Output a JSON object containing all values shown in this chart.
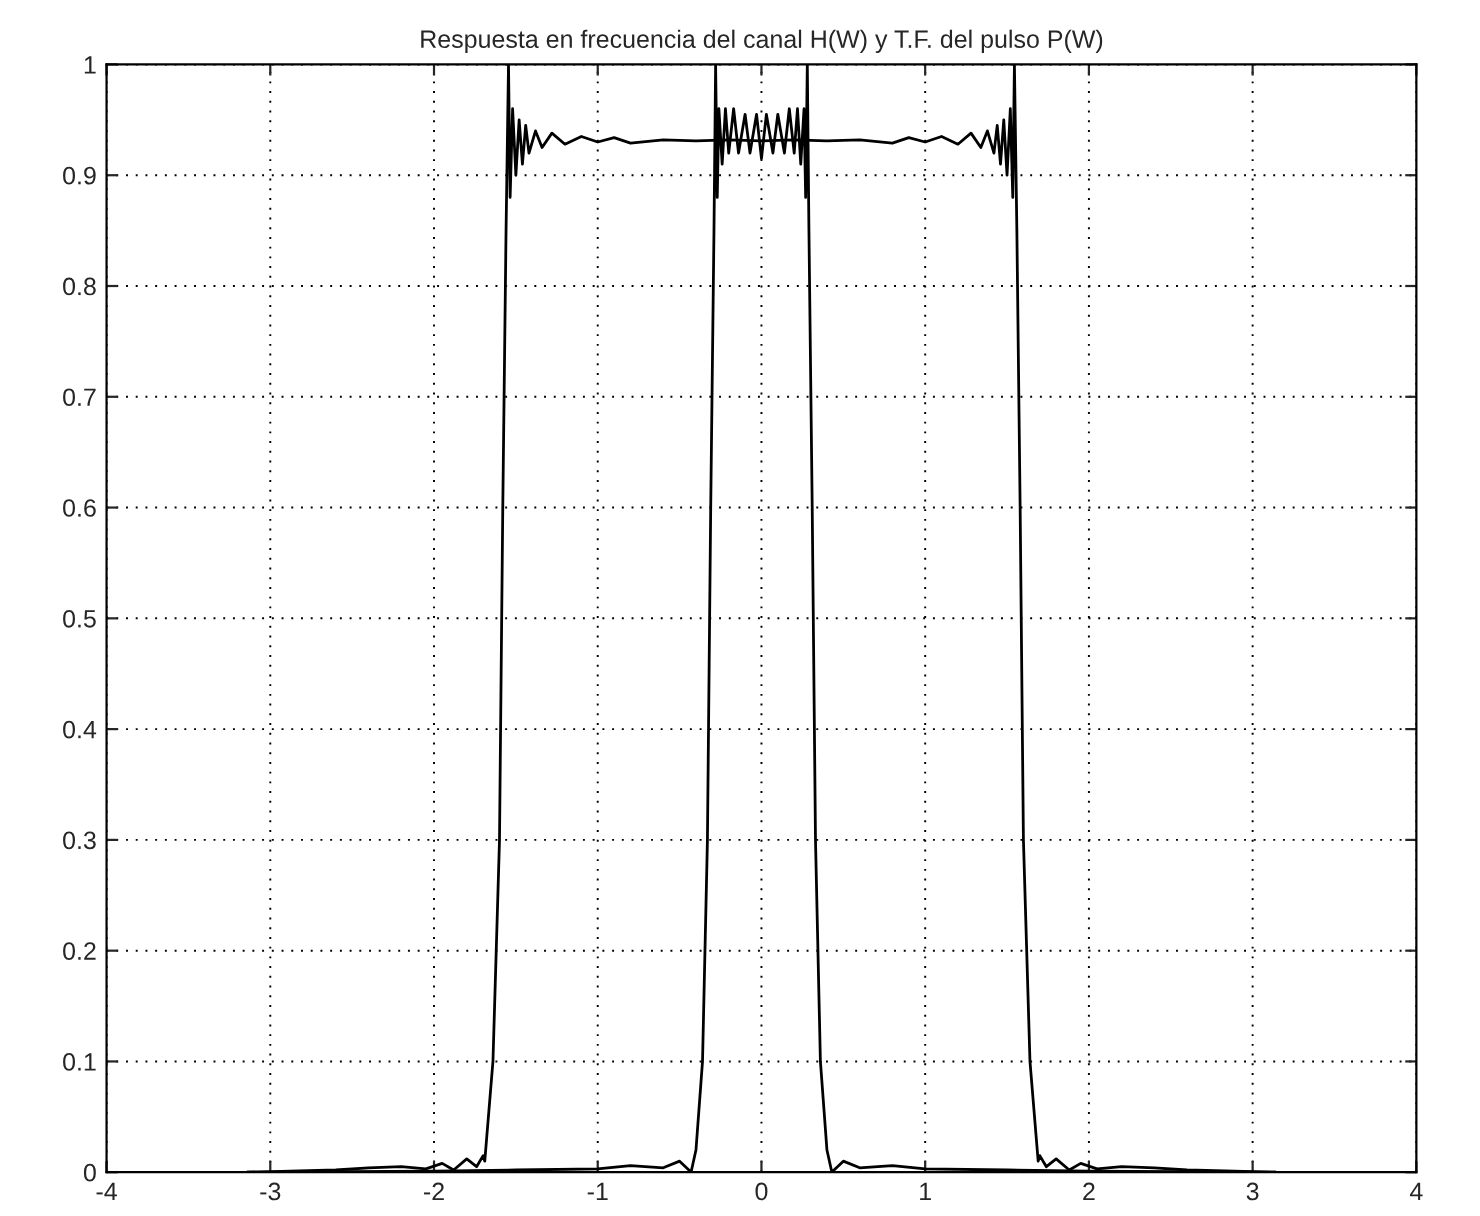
{
  "chart_data": {
    "type": "line",
    "title": "Respuesta en frecuencia del canal H(W) y T.F. del pulso P(W)",
    "x": [
      -3.14,
      -2.6,
      -2.4,
      -2.2,
      -2.05,
      -1.95,
      -1.88,
      -1.8,
      -1.74,
      -1.7,
      -1.69,
      -1.64,
      -1.6,
      -1.58,
      -1.56,
      -1.545,
      -1.535,
      -1.52,
      -1.5,
      -1.48,
      -1.46,
      -1.44,
      -1.42,
      -1.38,
      -1.34,
      -1.28,
      -1.2,
      -1.1,
      -1.0,
      -0.9,
      -0.8,
      -0.6,
      -0.4,
      -0.2,
      0,
      0.2,
      0.4,
      0.6,
      0.8,
      0.9,
      1.0,
      1.1,
      1.2,
      1.28,
      1.34,
      1.38,
      1.42,
      1.44,
      1.46,
      1.48,
      1.5,
      1.52,
      1.535,
      1.545,
      1.56,
      1.58,
      1.6,
      1.64,
      1.69,
      1.7,
      1.74,
      1.8,
      1.88,
      1.95,
      2.05,
      2.2,
      2.4,
      2.6,
      3.14
    ],
    "series": [
      {
        "color": "#000000",
        "values": [
          0.0,
          0.002,
          0.004,
          0.005,
          0.003,
          0.008,
          0.002,
          0.012,
          0.005,
          0.015,
          0.01,
          0.1,
          0.3,
          0.6,
          0.85,
          1.0,
          0.88,
          0.96,
          0.9,
          0.95,
          0.91,
          0.945,
          0.92,
          0.94,
          0.925,
          0.938,
          0.928,
          0.935,
          0.93,
          0.934,
          0.929,
          0.932,
          0.931,
          0.932,
          0.931,
          0.932,
          0.931,
          0.932,
          0.929,
          0.934,
          0.93,
          0.935,
          0.928,
          0.938,
          0.925,
          0.94,
          0.92,
          0.945,
          0.91,
          0.95,
          0.9,
          0.96,
          0.88,
          1.0,
          0.85,
          0.6,
          0.3,
          0.1,
          0.01,
          0.015,
          0.005,
          0.012,
          0.002,
          0.008,
          0.003,
          0.005,
          0.004,
          0.002,
          0.0
        ]
      },
      {
        "color": "#000000",
        "x": [
          -3.14,
          -2.0,
          -1.5,
          -1.0,
          -0.8,
          -0.6,
          -0.5,
          -0.45,
          -0.43,
          -0.4,
          -0.36,
          -0.33,
          -0.31,
          -0.29,
          -0.28,
          -0.27,
          -0.26,
          -0.24,
          -0.22,
          -0.2,
          -0.17,
          -0.14,
          -0.1,
          -0.07,
          -0.03,
          0,
          0.03,
          0.07,
          0.1,
          0.14,
          0.17,
          0.2,
          0.22,
          0.24,
          0.26,
          0.27,
          0.28,
          0.29,
          0.31,
          0.33,
          0.36,
          0.4,
          0.43,
          0.45,
          0.5,
          0.6,
          0.8,
          1.0,
          1.5,
          2.0,
          3.14
        ],
        "values": [
          0.0,
          0.001,
          0.002,
          0.003,
          0.006,
          0.004,
          0.01,
          0.003,
          0.0,
          0.02,
          0.1,
          0.3,
          0.6,
          0.85,
          1.0,
          0.88,
          0.96,
          0.91,
          0.96,
          0.92,
          0.96,
          0.92,
          0.955,
          0.92,
          0.955,
          0.915,
          0.955,
          0.92,
          0.955,
          0.92,
          0.96,
          0.92,
          0.96,
          0.91,
          0.96,
          0.88,
          1.0,
          0.85,
          0.6,
          0.3,
          0.1,
          0.02,
          0.0,
          0.003,
          0.01,
          0.004,
          0.006,
          0.003,
          0.002,
          0.001,
          0.0
        ]
      }
    ],
    "xlim": [
      -4,
      4
    ],
    "xticks": [
      -4,
      -3,
      -2,
      -1,
      0,
      1,
      2,
      3,
      4
    ],
    "ylim": [
      0,
      1
    ],
    "yticks": [
      0,
      0.1,
      0.2,
      0.3,
      0.4,
      0.5,
      0.6,
      0.7,
      0.8,
      0.9,
      1
    ],
    "grid": true,
    "legend": false,
    "line_style": "solid",
    "marker": "none"
  }
}
